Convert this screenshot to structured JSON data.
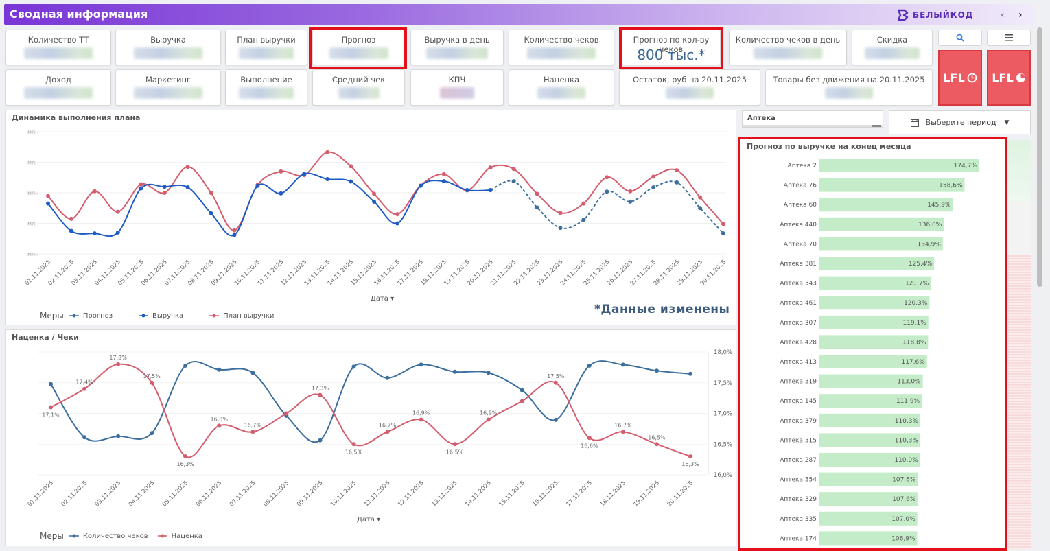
{
  "header": {
    "title": "Сводная информация",
    "logo_text": "БЕЛЫЙКОД",
    "prev_icon": "chevron-left-icon",
    "next_icon": "chevron-right-icon"
  },
  "kpis": [
    {
      "label": "Количество ТТ"
    },
    {
      "label": "Выручка"
    },
    {
      "label": "План выручки"
    },
    {
      "label": "Прогноз"
    },
    {
      "label": "Выручка в день"
    },
    {
      "label": "Количество чеков"
    },
    {
      "label": "Прогноз по кол-ву чеков",
      "value": "800 тыс.*"
    },
    {
      "label": "Количество чеков в день"
    },
    {
      "label": "Скидка"
    },
    {
      "label": "Доход"
    },
    {
      "label": "Маркетинг"
    },
    {
      "label": "Выполнение"
    },
    {
      "label": "Средний чек"
    },
    {
      "label": "КПЧ"
    },
    {
      "label": "Наценка"
    },
    {
      "label": "Остаток, руб на 20.11.2025"
    },
    {
      "label": "Товары без движения на 20.11.2025"
    }
  ],
  "buttons": {
    "search_icon": "search-icon",
    "menu_icon": "menu-icon",
    "lfl1": "LFL",
    "lfl2": "LFL"
  },
  "colors": {
    "accent_purple": "#7a35d6",
    "forecast": "#3d6f9e",
    "revenue": "#1e5bc6",
    "plan": "#d45d6e",
    "checks": "#3d6f9e",
    "markup": "#d45d6e",
    "bar": "#c4ecc8",
    "highlight": "#e3101c"
  },
  "chart1": {
    "title": "Динамика выполнения плана",
    "x_dim_label": "Дата",
    "legend_title": "Меры",
    "legend": [
      "Прогноз",
      "Выручка",
      "План выручки"
    ],
    "y_ticks": [
      "млн",
      "млн",
      "млн",
      "млн",
      "млн"
    ],
    "note": "*Данные изменены"
  },
  "chart2": {
    "title": "Наценка / Чеки",
    "x_dim_label": "Дата",
    "legend_title": "Меры",
    "legend": [
      "Количество чеков",
      "Наценка"
    ],
    "right_ticks": [
      "18,0%",
      "17,5%",
      "17,0%",
      "16,5%",
      "16,0%"
    ]
  },
  "filter": {
    "store_label": "Аптека",
    "period_label": "Выберите период",
    "calendar_icon": "calendar-icon"
  },
  "chart3": {
    "title": "Прогноз по выручке на конец месяца"
  },
  "chart_data": [
    {
      "type": "line",
      "title": "Динамика выполнения плана",
      "xlabel": "Дата",
      "x": [
        "01.11.2025",
        "02.11.2025",
        "03.11.2025",
        "04.11.2025",
        "05.11.2025",
        "06.11.2025",
        "07.11.2025",
        "08.11.2025",
        "09.11.2025",
        "10.11.2025",
        "11.11.2025",
        "12.11.2025",
        "13.11.2025",
        "14.11.2025",
        "15.11.2025",
        "16.11.2025",
        "17.11.2025",
        "18.11.2025",
        "19.11.2025",
        "20.11.2025",
        "21.11.2025",
        "22.11.2025",
        "23.11.2025",
        "24.11.2025",
        "25.11.2025",
        "26.11.2025",
        "27.11.2025",
        "28.11.2025",
        "29.11.2025",
        "30.11.2025"
      ],
      "series": [
        {
          "name": "Выручка",
          "values": [
            1.65,
            0.75,
            0.67,
            0.7,
            2.15,
            2.2,
            2.18,
            1.33,
            0.62,
            2.23,
            1.98,
            2.62,
            2.45,
            2.37,
            1.71,
            1.0,
            2.23,
            2.38,
            2.09,
            2.09,
            null,
            null,
            null,
            null,
            null,
            null,
            null,
            null,
            null,
            null
          ]
        },
        {
          "name": "Прогноз",
          "values": [
            null,
            null,
            null,
            null,
            null,
            null,
            null,
            null,
            null,
            null,
            null,
            null,
            null,
            null,
            null,
            null,
            null,
            null,
            null,
            2.09,
            2.38,
            1.52,
            0.85,
            1.12,
            2.04,
            1.71,
            2.18,
            2.34,
            1.5,
            0.67
          ]
        },
        {
          "name": "План выручки",
          "values": [
            1.9,
            1.15,
            2.05,
            1.38,
            2.28,
            2.0,
            2.85,
            2.0,
            0.77,
            2.26,
            2.7,
            2.58,
            3.33,
            2.87,
            1.97,
            1.3,
            2.24,
            2.61,
            2.08,
            2.83,
            2.78,
            1.97,
            1.34,
            1.65,
            2.51,
            2.05,
            2.53,
            2.74,
            1.85,
            0.98
          ]
        }
      ]
    },
    {
      "type": "line",
      "title": "Наценка / Чеки",
      "xlabel": "Дата",
      "x": [
        "01.11.2025",
        "02.11.2025",
        "03.11.2025",
        "04.11.2025",
        "05.11.2025",
        "06.11.2025",
        "07.11.2025",
        "08.11.2025",
        "09.11.2025",
        "10.11.2025",
        "11.11.2025",
        "12.11.2025",
        "13.11.2025",
        "14.11.2025",
        "15.11.2025",
        "16.11.2025",
        "17.11.2025",
        "18.11.2025",
        "19.11.2025",
        "20.11.2025"
      ],
      "series": [
        {
          "name": "Количество чеков",
          "axis": "left",
          "values": [
            0.82,
            0.3,
            0.31,
            0.34,
            1.0,
            0.96,
            0.93,
            0.51,
            0.27,
            0.99,
            0.88,
            1.01,
            0.94,
            0.93,
            0.76,
            0.47,
            1.0,
            1.01,
            0.95,
            0.92
          ]
        },
        {
          "name": "Наценка",
          "axis": "right",
          "ylim": [
            16.0,
            18.0
          ],
          "values": [
            17.1,
            17.4,
            17.8,
            17.5,
            16.3,
            16.8,
            16.7,
            17.0,
            17.3,
            16.5,
            16.7,
            16.9,
            16.5,
            16.9,
            17.2,
            17.5,
            16.6,
            16.7,
            16.5,
            16.3
          ]
        }
      ],
      "right_labels": [
        "17,1%",
        "17,4%",
        "17,8%",
        "17,5%",
        "16,3%",
        "16,8%",
        "16,7%",
        "",
        "17,3%",
        "16,5%",
        "16,7%",
        "16,9%",
        "16,5%",
        "16,9%",
        "",
        "17,5%",
        "16,6%",
        "16,7%",
        "16,5%",
        "16,3%"
      ]
    },
    {
      "type": "bar",
      "title": "Прогноз по выручке на конец месяца",
      "orientation": "horizontal",
      "categories": [
        "Аптека 2",
        "Аптека 76",
        "Аптека 60",
        "Аптека 440",
        "Аптека 70",
        "Аптека 381",
        "Аптека 343",
        "Аптека 461",
        "Аптека 307",
        "Аптека 428",
        "Аптека 413",
        "Аптека 319",
        "Аптека 145",
        "Аптека 379",
        "Аптека 315",
        "Аптека 287",
        "Аптека 354",
        "Аптека 329",
        "Аптека 335",
        "Аптека 174"
      ],
      "values": [
        174.7,
        158.6,
        145.9,
        136.0,
        134.9,
        125.4,
        121.7,
        120.3,
        119.1,
        118.8,
        117.6,
        113.0,
        111.9,
        110.3,
        110.3,
        110.0,
        107.6,
        107.6,
        107.0,
        106.9
      ],
      "value_labels": [
        "174,7%",
        "158,6%",
        "145,9%",
        "136,0%",
        "134,9%",
        "125,4%",
        "121,7%",
        "120,3%",
        "119,1%",
        "118,8%",
        "117,6%",
        "113,0%",
        "111,9%",
        "110,3%",
        "110,3%",
        "110,0%",
        "107,6%",
        "107,6%",
        "107,0%",
        "106,9%"
      ]
    }
  ]
}
